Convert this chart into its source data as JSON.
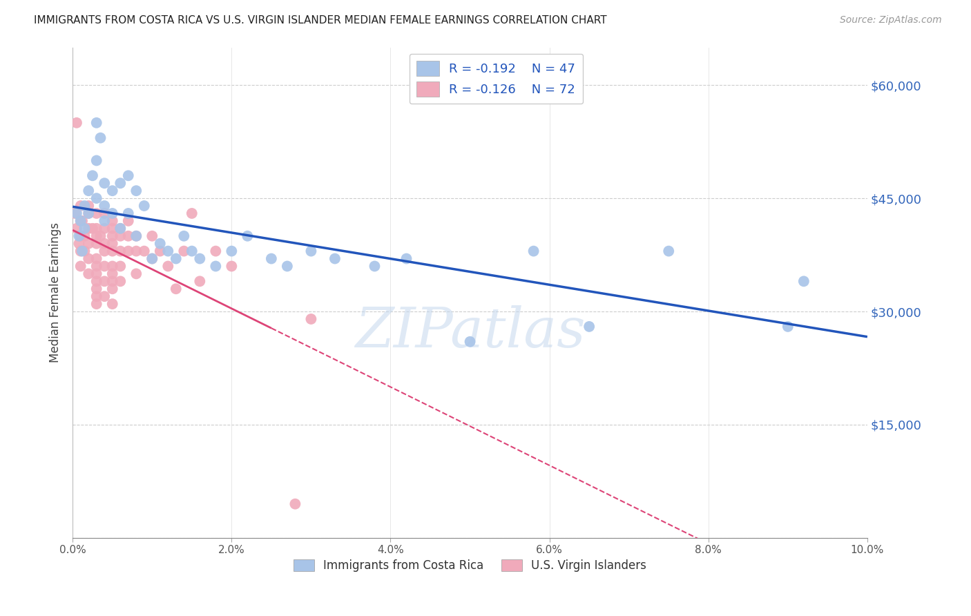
{
  "title": "IMMIGRANTS FROM COSTA RICA VS U.S. VIRGIN ISLANDER MEDIAN FEMALE EARNINGS CORRELATION CHART",
  "source": "Source: ZipAtlas.com",
  "ylabel": "Median Female Earnings",
  "xlim": [
    0.0,
    0.1
  ],
  "ylim": [
    0,
    65000
  ],
  "yticks": [
    0,
    15000,
    30000,
    45000,
    60000
  ],
  "ytick_labels": [
    "",
    "$15,000",
    "$30,000",
    "$45,000",
    "$60,000"
  ],
  "legend_r1": "R = -0.192",
  "legend_n1": "N = 47",
  "legend_r2": "R = -0.126",
  "legend_n2": "N = 72",
  "blue_color": "#a8c4e8",
  "pink_color": "#f0aabb",
  "blue_line_color": "#2255bb",
  "pink_line_color": "#dd4477",
  "blue_scatter_x": [
    0.0005,
    0.0008,
    0.001,
    0.0012,
    0.0015,
    0.0015,
    0.002,
    0.002,
    0.0025,
    0.003,
    0.003,
    0.003,
    0.0035,
    0.004,
    0.004,
    0.004,
    0.005,
    0.005,
    0.006,
    0.006,
    0.007,
    0.007,
    0.008,
    0.008,
    0.009,
    0.01,
    0.011,
    0.012,
    0.013,
    0.014,
    0.015,
    0.016,
    0.018,
    0.02,
    0.022,
    0.025,
    0.027,
    0.03,
    0.033,
    0.038,
    0.042,
    0.05,
    0.058,
    0.065,
    0.075,
    0.09,
    0.092
  ],
  "blue_scatter_y": [
    43000,
    40000,
    42000,
    38000,
    44000,
    41000,
    46000,
    43000,
    48000,
    55000,
    50000,
    45000,
    53000,
    47000,
    44000,
    42000,
    46000,
    43000,
    47000,
    41000,
    48000,
    43000,
    46000,
    40000,
    44000,
    37000,
    39000,
    38000,
    37000,
    40000,
    38000,
    37000,
    36000,
    38000,
    40000,
    37000,
    36000,
    38000,
    37000,
    36000,
    37000,
    26000,
    38000,
    28000,
    38000,
    28000,
    34000
  ],
  "pink_scatter_x": [
    0.0003,
    0.0005,
    0.0005,
    0.0008,
    0.001,
    0.001,
    0.001,
    0.001,
    0.001,
    0.0012,
    0.0015,
    0.0015,
    0.002,
    0.002,
    0.002,
    0.002,
    0.002,
    0.002,
    0.0025,
    0.003,
    0.003,
    0.003,
    0.003,
    0.003,
    0.003,
    0.003,
    0.003,
    0.003,
    0.003,
    0.003,
    0.0035,
    0.004,
    0.004,
    0.004,
    0.004,
    0.004,
    0.004,
    0.004,
    0.005,
    0.005,
    0.005,
    0.005,
    0.005,
    0.005,
    0.005,
    0.005,
    0.005,
    0.005,
    0.006,
    0.006,
    0.006,
    0.006,
    0.006,
    0.007,
    0.007,
    0.007,
    0.008,
    0.008,
    0.008,
    0.009,
    0.01,
    0.01,
    0.011,
    0.012,
    0.013,
    0.014,
    0.015,
    0.016,
    0.018,
    0.02,
    0.028,
    0.03
  ],
  "pink_scatter_y": [
    43000,
    55000,
    41000,
    39000,
    44000,
    42000,
    40000,
    38000,
    36000,
    42000,
    40000,
    38000,
    44000,
    43000,
    41000,
    39000,
    37000,
    35000,
    41000,
    43000,
    41000,
    40000,
    39000,
    37000,
    36000,
    35000,
    34000,
    33000,
    32000,
    31000,
    40000,
    43000,
    41000,
    39000,
    38000,
    36000,
    34000,
    32000,
    42000,
    41000,
    40000,
    39000,
    38000,
    36000,
    35000,
    34000,
    33000,
    31000,
    41000,
    40000,
    38000,
    36000,
    34000,
    42000,
    40000,
    38000,
    40000,
    38000,
    35000,
    38000,
    40000,
    37000,
    38000,
    36000,
    33000,
    38000,
    43000,
    34000,
    38000,
    36000,
    4500,
    29000
  ]
}
